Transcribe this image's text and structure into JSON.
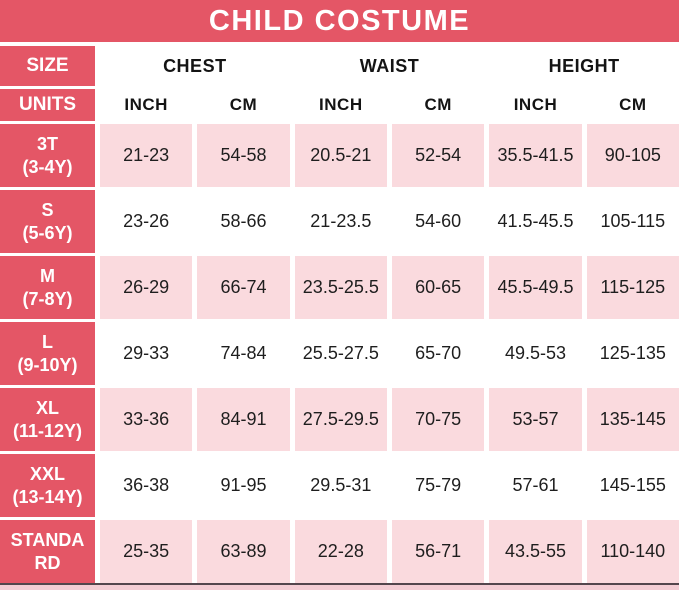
{
  "title": "CHILD COSTUME",
  "colors": {
    "red": "#e45666",
    "light_pink": "#fadade",
    "text": "#1e1e1e",
    "white": "#ffffff",
    "bottom_line": "#53464d"
  },
  "chart_data": {
    "type": "table",
    "title": "CHILD COSTUME",
    "size_header": "SIZE",
    "units_header": "UNITS",
    "groups": [
      "CHEST",
      "WAIST",
      "HEIGHT"
    ],
    "units": [
      "INCH",
      "CM",
      "INCH",
      "CM",
      "INCH",
      "CM"
    ],
    "rows": [
      {
        "label_line1": "3T",
        "label_line2": "(3-4Y)",
        "values": [
          "21-23",
          "54-58",
          "20.5-21",
          "52-54",
          "35.5-41.5",
          "90-105"
        ]
      },
      {
        "label_line1": "S",
        "label_line2": "(5-6Y)",
        "values": [
          "23-26",
          "58-66",
          "21-23.5",
          "54-60",
          "41.5-45.5",
          "105-115"
        ]
      },
      {
        "label_line1": "M",
        "label_line2": "(7-8Y)",
        "values": [
          "26-29",
          "66-74",
          "23.5-25.5",
          "60-65",
          "45.5-49.5",
          "115-125"
        ]
      },
      {
        "label_line1": "L",
        "label_line2": "(9-10Y)",
        "values": [
          "29-33",
          "74-84",
          "25.5-27.5",
          "65-70",
          "49.5-53",
          "125-135"
        ]
      },
      {
        "label_line1": "XL",
        "label_line2": "(11-12Y)",
        "values": [
          "33-36",
          "84-91",
          "27.5-29.5",
          "70-75",
          "53-57",
          "135-145"
        ]
      },
      {
        "label_line1": "XXL",
        "label_line2": "(13-14Y)",
        "values": [
          "36-38",
          "91-95",
          "29.5-31",
          "75-79",
          "57-61",
          "145-155"
        ]
      },
      {
        "label_line1": "STANDA",
        "label_line2": "RD",
        "values": [
          "25-35",
          "63-89",
          "22-28",
          "56-71",
          "43.5-55",
          "110-140"
        ]
      }
    ]
  }
}
